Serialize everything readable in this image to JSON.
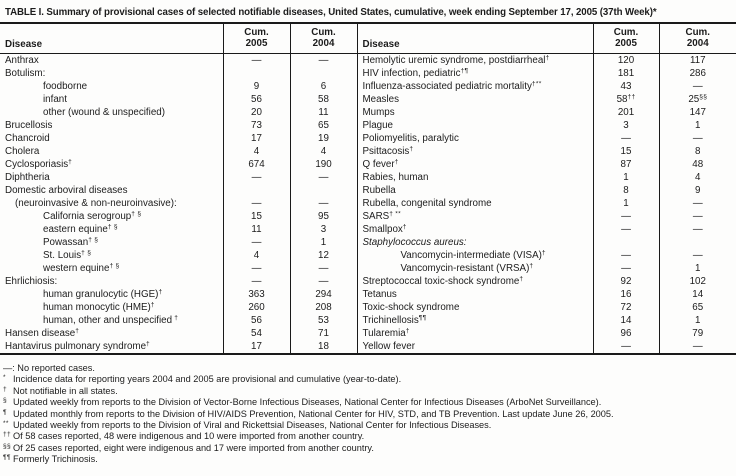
{
  "title": "TABLE I. Summary of provisional cases of selected notifiable diseases, United States, cumulative, week ending September 17, 2005 (37th Week)*",
  "header": {
    "disease_label": "Disease",
    "cum_label": "Cum.",
    "year_2005": "2005",
    "year_2004": "2004"
  },
  "rows": [
    {
      "left": {
        "label": "Anthrax",
        "indent": 0,
        "v2005": "—",
        "v2004": "—"
      },
      "right": {
        "label": "Hemolytic uremic syndrome, postdiarrheal",
        "sup": "†",
        "indent": 0,
        "v2005": "120",
        "v2004": "117"
      }
    },
    {
      "left": {
        "label": "Botulism:",
        "indent": 0,
        "v2005": "",
        "v2004": ""
      },
      "right": {
        "label": "HIV infection, pediatric",
        "sup": "†¶",
        "indent": 0,
        "v2005": "181",
        "v2004": "286"
      }
    },
    {
      "left": {
        "label": "foodborne",
        "indent": 2,
        "v2005": "9",
        "v2004": "6"
      },
      "right": {
        "label": "Influenza-associated pediatric mortality",
        "sup": "†**",
        "indent": 0,
        "v2005": "43",
        "v2004": "—"
      }
    },
    {
      "left": {
        "label": "infant",
        "indent": 2,
        "v2005": "56",
        "v2004": "58"
      },
      "right": {
        "label": "Measles",
        "indent": 0,
        "v2005": "58",
        "s2005": "††",
        "v2004": "25",
        "s2004": "§§"
      }
    },
    {
      "left": {
        "label": "other (wound & unspecified)",
        "indent": 2,
        "v2005": "20",
        "v2004": "11"
      },
      "right": {
        "label": "Mumps",
        "indent": 0,
        "v2005": "201",
        "v2004": "147"
      }
    },
    {
      "left": {
        "label": "Brucellosis",
        "indent": 0,
        "v2005": "73",
        "v2004": "65"
      },
      "right": {
        "label": "Plague",
        "indent": 0,
        "v2005": "3",
        "v2004": "1"
      }
    },
    {
      "left": {
        "label": "Chancroid",
        "indent": 0,
        "v2005": "17",
        "v2004": "19"
      },
      "right": {
        "label": "Poliomyelitis, paralytic",
        "indent": 0,
        "v2005": "—",
        "v2004": "—"
      }
    },
    {
      "left": {
        "label": "Cholera",
        "indent": 0,
        "v2005": "4",
        "v2004": "4"
      },
      "right": {
        "label": "Psittacosis",
        "sup": "†",
        "indent": 0,
        "v2005": "15",
        "v2004": "8"
      }
    },
    {
      "left": {
        "label": "Cyclosporiasis",
        "sup": "†",
        "indent": 0,
        "v2005": "674",
        "v2004": "190"
      },
      "right": {
        "label": "Q fever",
        "sup": "†",
        "indent": 0,
        "v2005": "87",
        "v2004": "48"
      }
    },
    {
      "left": {
        "label": "Diphtheria",
        "indent": 0,
        "v2005": "—",
        "v2004": "—"
      },
      "right": {
        "label": "Rabies, human",
        "indent": 0,
        "v2005": "1",
        "v2004": "4"
      }
    },
    {
      "left": {
        "label": "Domestic arboviral diseases",
        "indent": 0,
        "v2005": "",
        "v2004": ""
      },
      "right": {
        "label": "Rubella",
        "indent": 0,
        "v2005": "8",
        "v2004": "9"
      }
    },
    {
      "left": {
        "label": "(neuroinvasive & non-neuroinvasive):",
        "indent": 1,
        "v2005": "—",
        "v2004": "—"
      },
      "right": {
        "label": "Rubella, congenital syndrome",
        "indent": 0,
        "v2005": "1",
        "v2004": "—"
      }
    },
    {
      "left": {
        "label": "California serogroup",
        "sup": "† §",
        "indent": 2,
        "v2005": "15",
        "v2004": "95"
      },
      "right": {
        "label": "SARS",
        "sup": "† **",
        "indent": 0,
        "v2005": "—",
        "v2004": "—"
      }
    },
    {
      "left": {
        "label": "eastern equine",
        "sup": "† §",
        "indent": 2,
        "v2005": "11",
        "v2004": "3"
      },
      "right": {
        "label": "Smallpox",
        "sup": "†",
        "indent": 0,
        "v2005": "—",
        "v2004": "—"
      }
    },
    {
      "left": {
        "label": "Powassan",
        "sup": "† §",
        "indent": 2,
        "v2005": "—",
        "v2004": "1"
      },
      "right": {
        "label": "Staphylococcus aureus:",
        "italic": true,
        "indent": 0,
        "v2005": "",
        "v2004": ""
      }
    },
    {
      "left": {
        "label": "St. Louis",
        "sup": "† §",
        "indent": 2,
        "v2005": "4",
        "v2004": "12"
      },
      "right": {
        "label": "Vancomycin-intermediate (VISA)",
        "sup": "†",
        "indent": 2,
        "v2005": "—",
        "v2004": "—"
      }
    },
    {
      "left": {
        "label": "western equine",
        "sup": "† §",
        "indent": 2,
        "v2005": "—",
        "v2004": "—"
      },
      "right": {
        "label": "Vancomycin-resistant (VRSA)",
        "sup": "†",
        "indent": 2,
        "v2005": "—",
        "v2004": "1"
      }
    },
    {
      "left": {
        "label": "Ehrlichiosis:",
        "indent": 0,
        "v2005": "—",
        "v2004": "—"
      },
      "right": {
        "label": "Streptococcal toxic-shock syndrome",
        "sup": "†",
        "indent": 0,
        "v2005": "92",
        "v2004": "102"
      }
    },
    {
      "left": {
        "label": "human granulocytic (HGE)",
        "sup": "†",
        "indent": 2,
        "v2005": "363",
        "v2004": "294"
      },
      "right": {
        "label": "Tetanus",
        "indent": 0,
        "v2005": "16",
        "v2004": "14"
      }
    },
    {
      "left": {
        "label": "human monocytic (HME)",
        "sup": "†",
        "indent": 2,
        "v2005": "260",
        "v2004": "208"
      },
      "right": {
        "label": "Toxic-shock syndrome",
        "indent": 0,
        "v2005": "72",
        "v2004": "65"
      }
    },
    {
      "left": {
        "label": "human, other and unspecified",
        "sup": " †",
        "indent": 2,
        "v2005": "56",
        "v2004": "53"
      },
      "right": {
        "label": "Trichinellosis",
        "sup": "¶¶",
        "indent": 0,
        "v2005": "14",
        "v2004": "1"
      }
    },
    {
      "left": {
        "label": "Hansen disease",
        "sup": "†",
        "indent": 0,
        "v2005": "54",
        "v2004": "71"
      },
      "right": {
        "label": "Tularemia",
        "sup": "†",
        "indent": 0,
        "v2005": "96",
        "v2004": "79"
      }
    },
    {
      "left": {
        "label": "Hantavirus pulmonary syndrome",
        "sup": "†",
        "indent": 0,
        "v2005": "17",
        "v2004": "18"
      },
      "right": {
        "label": "Yellow fever",
        "indent": 0,
        "v2005": "—",
        "v2004": "—"
      }
    }
  ],
  "footnotes": [
    {
      "marker": "—:",
      "sup": false,
      "text": "No reported cases."
    },
    {
      "marker": "*",
      "sup": true,
      "text": "Incidence data for reporting years 2004 and 2005 are provisional and cumulative (year-to-date)."
    },
    {
      "marker": "†",
      "sup": true,
      "text": "Not notifiable in all states."
    },
    {
      "marker": "§",
      "sup": true,
      "text": "Updated weekly from reports to the Division of Vector-Borne Infectious Diseases, National Center for Infectious Diseases (ArboNet Surveillance)."
    },
    {
      "marker": "¶",
      "sup": true,
      "text": "Updated monthly from reports to the Division of HIV/AIDS Prevention, National Center for HIV, STD, and TB Prevention. Last update June 26, 2005."
    },
    {
      "marker": "**",
      "sup": true,
      "text": "Updated weekly from reports to the Division of Viral and Rickettsial Diseases, National Center for Infectious Diseases."
    },
    {
      "marker": "††",
      "sup": true,
      "text": "Of 58 cases reported, 48 were indigenous and 10 were imported from another country."
    },
    {
      "marker": "§§",
      "sup": true,
      "text": "Of 25 cases reported, eight were indigenous and 17 were imported from another country."
    },
    {
      "marker": "¶¶",
      "sup": true,
      "text": "Formerly Trichinosis."
    }
  ]
}
